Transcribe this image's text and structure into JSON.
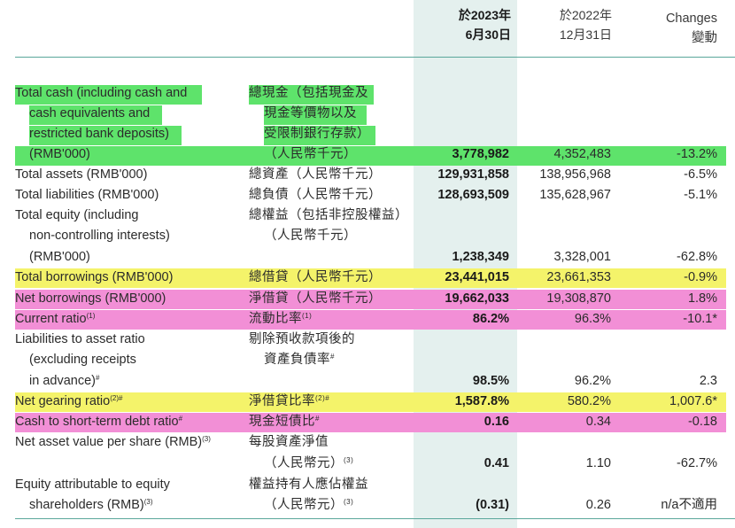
{
  "header": {
    "col_2023_line1": "於2023年",
    "col_2023_line2": "6月30日",
    "col_2022_line1": "於2022年",
    "col_2022_line2": "12月31日",
    "col_changes_en": "Changes",
    "col_changes_zh": "變動"
  },
  "colors": {
    "green": "#5ee36b",
    "yellow": "#f4f36a",
    "pink": "#f28fd6",
    "rule": "#5aa79b",
    "band": "#e4f0ee"
  },
  "rows": {
    "total_cash": {
      "en": [
        "Total cash (including cash and",
        "cash equivalents and",
        "restricted bank deposits)",
        "(RMB'000)"
      ],
      "zh": [
        "總現金（包括現金及",
        "現金等價物以及",
        "受限制銀行存款）",
        "（人民幣千元）"
      ],
      "v2023": "3,778,982",
      "v2022": "4,352,483",
      "change": "-13.2%"
    },
    "total_assets": {
      "en": "Total assets (RMB'000)",
      "zh": "總資產（人民幣千元）",
      "v2023": "129,931,858",
      "v2022": "138,956,968",
      "change": "-6.5%"
    },
    "total_liabilities": {
      "en": "Total liabilities (RMB'000)",
      "zh": "總負債（人民幣千元）",
      "v2023": "128,693,509",
      "v2022": "135,628,967",
      "change": "-5.1%"
    },
    "total_equity": {
      "en": [
        "Total equity (including",
        "non-controlling interests)",
        "(RMB'000)"
      ],
      "zh": [
        "總權益（包括非控股權益）",
        "（人民幣千元）"
      ],
      "v2023": "1,238,349",
      "v2022": "3,328,001",
      "change": "-62.8%"
    },
    "total_borrowings": {
      "en": "Total borrowings (RMB'000)",
      "zh": "總借貸（人民幣千元）",
      "v2023": "23,441,015",
      "v2022": "23,661,353",
      "change": "-0.9%"
    },
    "net_borrowings": {
      "en": "Net borrowings (RMB'000)",
      "zh": "淨借貸（人民幣千元）",
      "v2023": "19,662,033",
      "v2022": "19,308,870",
      "change": "1.8%"
    },
    "current_ratio": {
      "en": "Current ratio",
      "en_sup": "(1)",
      "zh": "流動比率",
      "zh_sup": "(1)",
      "v2023": "86.2%",
      "v2022": "96.3%",
      "change": "-10.1*"
    },
    "liab_asset": {
      "en": [
        "Liabilities to asset ratio",
        "(excluding receipts",
        "in advance)"
      ],
      "en_sup": "#",
      "zh": [
        "剔除預收款項後的",
        "資產負債率"
      ],
      "zh_sup": "#",
      "v2023": "98.5%",
      "v2022": "96.2%",
      "change": "2.3"
    },
    "net_gearing": {
      "en": "Net gearing ratio",
      "en_sup": "(2)#",
      "zh": "淨借貸比率",
      "zh_sup": "(2)#",
      "v2023": "1,587.8%",
      "v2022": "580.2%",
      "change": "1,007.6*"
    },
    "cash_short_debt": {
      "en": "Cash to short-term debt ratio",
      "en_sup": "#",
      "zh": "現金短債比",
      "zh_sup": "#",
      "v2023": "0.16",
      "v2022": "0.34",
      "change": "-0.18"
    },
    "nav_share": {
      "en": "Net asset value per share (RMB)",
      "en_sup": "(3)",
      "zh": [
        "每股資產淨值",
        "（人民幣元）"
      ],
      "zh_sup": "(3)",
      "v2023": "0.41",
      "v2022": "1.10",
      "change": "-62.7%"
    },
    "equity_attr": {
      "en": [
        "Equity attributable to equity",
        "shareholders (RMB)"
      ],
      "en_sup": "(3)",
      "zh": [
        "權益持有人應佔權益",
        "（人民幣元）"
      ],
      "zh_sup": "(3)",
      "v2023": "(0.31)",
      "v2022": "0.26",
      "change": "n/a不適用"
    }
  }
}
